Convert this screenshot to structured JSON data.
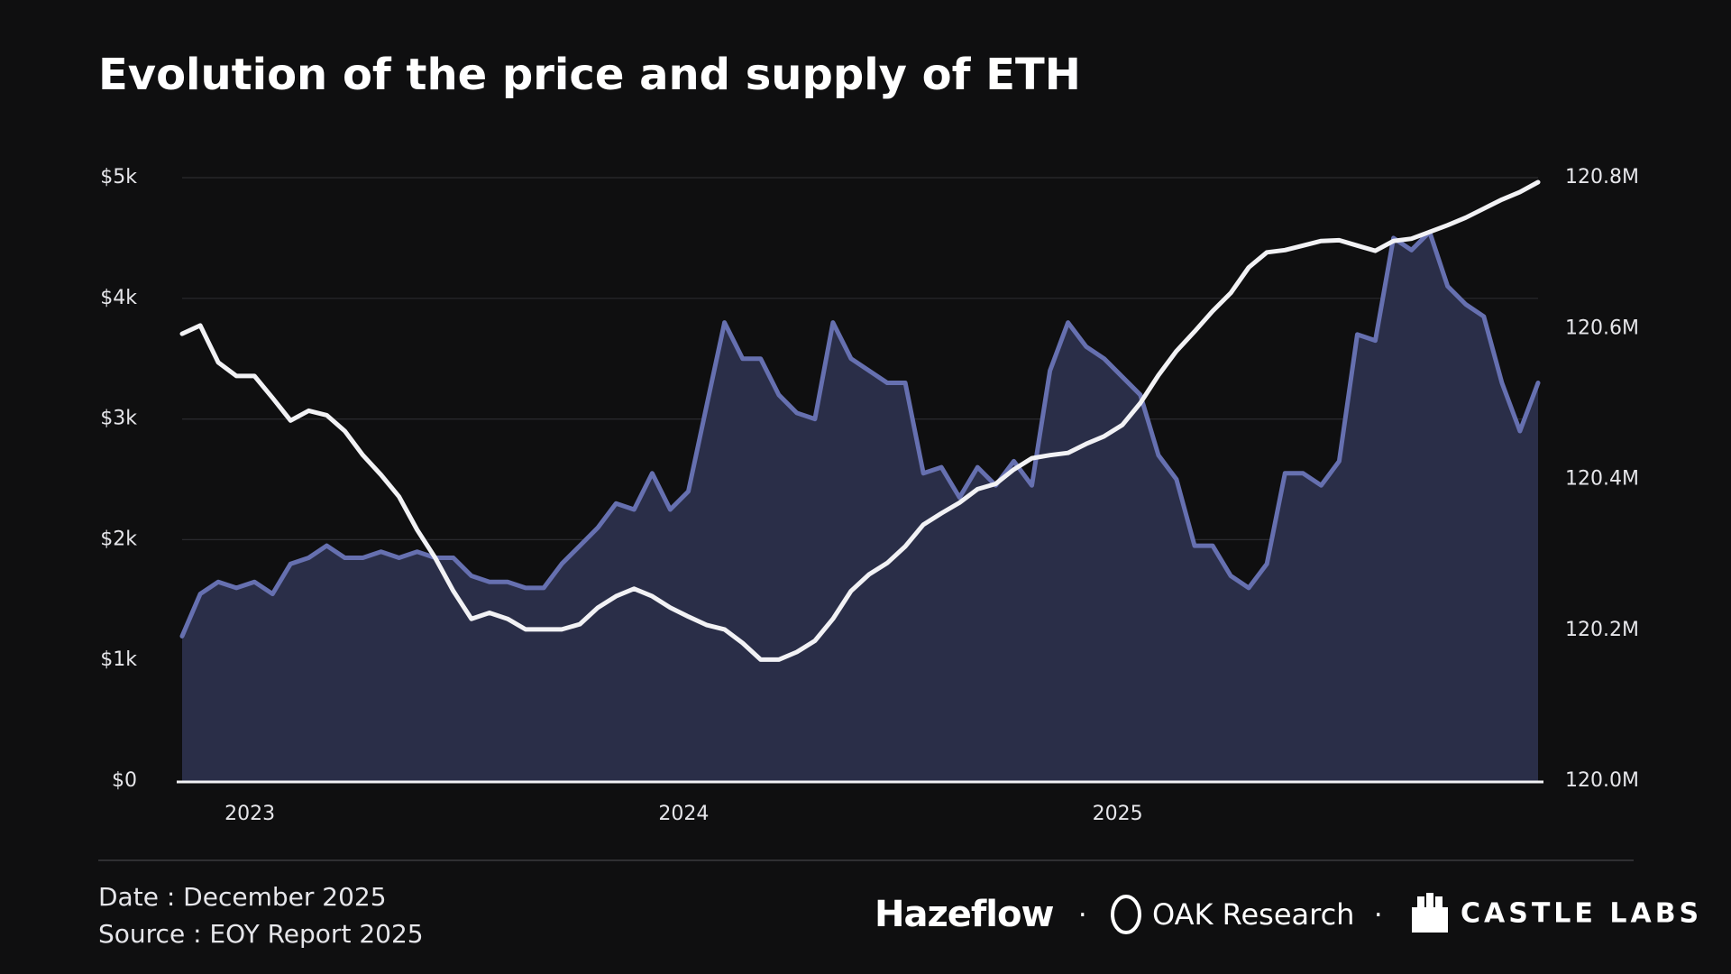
{
  "chart_data": {
    "type": "area-line",
    "title": "Evolution of the price and supply of ETH",
    "categories": [
      null,
      null,
      "2023",
      null,
      null,
      null,
      null,
      null,
      null,
      null,
      null,
      null,
      null,
      null,
      null,
      null,
      null,
      null,
      null,
      null,
      null,
      null,
      null,
      null,
      null,
      null,
      "2024",
      null,
      null,
      null,
      null,
      null,
      null,
      null,
      null,
      null,
      null,
      null,
      null,
      null,
      null,
      null,
      null,
      null,
      null,
      null,
      null,
      null,
      null,
      null,
      "2025",
      null,
      null,
      null,
      null,
      null,
      null,
      null,
      null,
      null,
      null,
      null,
      null,
      null,
      null,
      null,
      null,
      null,
      null,
      null,
      null,
      null,
      null,
      null,
      null,
      null
    ],
    "series": [
      {
        "name": "Price",
        "color": "#6670b0",
        "fill": "#2a2e48",
        "axis": "y",
        "values": [
          1200,
          1550,
          1650,
          1600,
          1650,
          1550,
          1800,
          1850,
          1950,
          1850,
          1850,
          1900,
          1850,
          1900,
          1850,
          1850,
          1700,
          1650,
          1650,
          1600,
          1600,
          1800,
          1950,
          2100,
          2300,
          2250,
          2550,
          2250,
          2400,
          3100,
          3800,
          3500,
          3500,
          3200,
          3050,
          3000,
          3800,
          3500,
          3400,
          3300,
          3300,
          2550,
          2600,
          2350,
          2600,
          2450,
          2650,
          2450,
          3400,
          3800,
          3600,
          3500,
          3350,
          3200,
          2700,
          2500,
          1950,
          1950,
          1700,
          1600,
          1800,
          2550,
          2550,
          2450,
          2650,
          3700,
          3650,
          4500,
          4400,
          4550,
          4100,
          3950,
          3850,
          3300,
          2900,
          3300
        ]
      },
      {
        "name": "Supply",
        "color": "#f2f2f5",
        "axis": "y2",
        "values": [
          120.593,
          120.604,
          120.555,
          120.537,
          120.537,
          120.508,
          120.478,
          120.491,
          120.485,
          120.464,
          120.432,
          120.406,
          120.377,
          120.333,
          120.296,
          120.252,
          120.215,
          120.223,
          120.215,
          120.201,
          120.201,
          120.201,
          120.208,
          120.23,
          120.245,
          120.255,
          120.245,
          120.23,
          120.218,
          120.207,
          120.201,
          120.183,
          120.161,
          120.161,
          120.171,
          120.186,
          120.215,
          120.252,
          120.274,
          120.289,
          120.311,
          120.34,
          120.355,
          120.369,
          120.387,
          120.394,
          120.413,
          120.428,
          120.432,
          120.435,
          120.447,
          120.457,
          120.472,
          120.501,
          120.538,
          120.57,
          120.596,
          120.623,
          120.647,
          120.681,
          120.701,
          120.704,
          120.71,
          120.716,
          120.717,
          120.71,
          120.703,
          120.716,
          120.719,
          120.728,
          120.737,
          120.747,
          120.759,
          120.771,
          120.781,
          120.794
        ]
      }
    ],
    "ylim": [
      0,
      5000
    ],
    "yticks": [
      {
        "value": 0,
        "label": "$0"
      },
      {
        "value": 1000,
        "label": "$1k"
      },
      {
        "value": 2000,
        "label": "$2k"
      },
      {
        "value": 3000,
        "label": "$3k"
      },
      {
        "value": 4000,
        "label": "$4k"
      },
      {
        "value": 5000,
        "label": "$5k"
      }
    ],
    "y2lim": [
      120.0,
      120.8
    ],
    "y2ticks": [
      {
        "value": 120.0,
        "label": "120.0M"
      },
      {
        "value": 120.2,
        "label": "120.2M"
      },
      {
        "value": 120.4,
        "label": "120.4M"
      },
      {
        "value": 120.6,
        "label": "120.6M"
      },
      {
        "value": 120.8,
        "label": "120.8M"
      }
    ],
    "grid": true
  },
  "footer": {
    "date": "Date : December 2025",
    "source": "Source : EOY Report 2025",
    "logos": [
      "Hazeflow",
      "OAK Research",
      "CASTLE LABS"
    ]
  }
}
